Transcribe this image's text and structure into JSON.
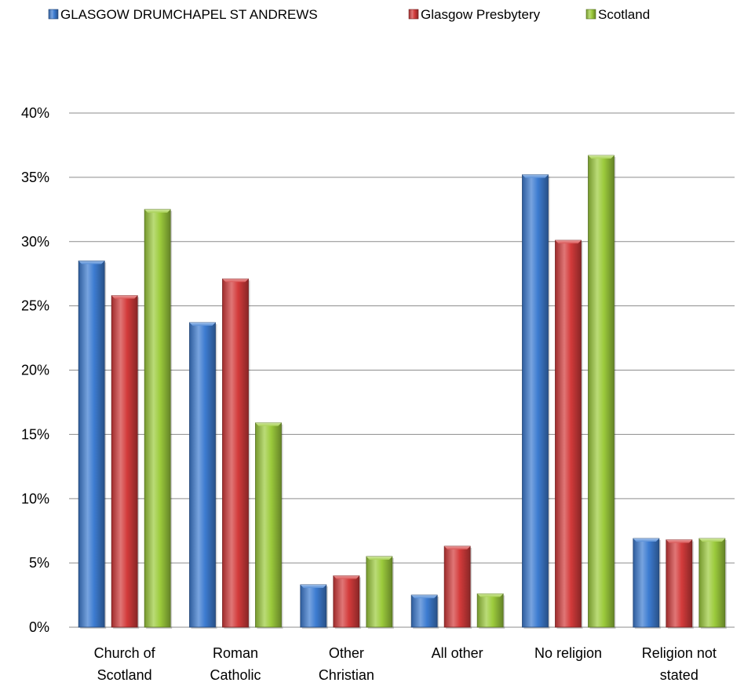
{
  "chart_data": {
    "type": "bar",
    "title": "",
    "xlabel": "",
    "ylabel": "",
    "categories": [
      [
        "Church of",
        "Scotland"
      ],
      [
        "Roman",
        "Catholic"
      ],
      [
        "Other",
        "Christian"
      ],
      [
        "All other"
      ],
      [
        "No religion"
      ],
      [
        "Religion not",
        "stated"
      ]
    ],
    "series": [
      {
        "name": "GLASGOW DRUMCHAPEL ST ANDREWS",
        "color": "#3d7cd1",
        "values": [
          28.5,
          23.7,
          3.3,
          2.5,
          35.2,
          6.9
        ]
      },
      {
        "name": "Glasgow Presbytery",
        "color": "#d33b3b",
        "values": [
          25.8,
          27.1,
          4.0,
          6.3,
          30.1,
          6.8
        ]
      },
      {
        "name": "Scotland",
        "color": "#9ccb3c",
        "values": [
          32.5,
          15.9,
          5.5,
          2.6,
          36.7,
          6.9
        ]
      }
    ],
    "ylim": [
      0,
      40
    ],
    "yticks": [
      0,
      5,
      10,
      15,
      20,
      25,
      30,
      35,
      40
    ],
    "ytick_suffix": "%",
    "grid": true,
    "legend_position": "top"
  }
}
